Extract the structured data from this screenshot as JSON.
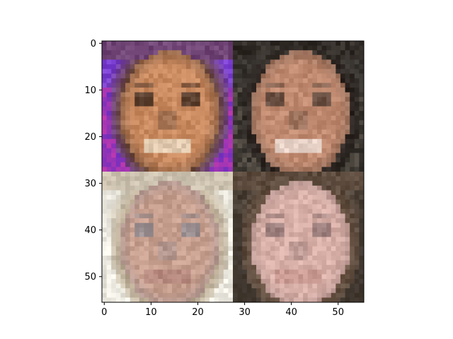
{
  "figure": {
    "axes": {
      "x_ticks": [
        "0",
        "10",
        "20",
        "30",
        "40",
        "50"
      ],
      "y_ticks": [
        "0",
        "10",
        "20",
        "30",
        "40",
        "50"
      ],
      "xlim": [
        -0.5,
        55.5
      ],
      "ylim": [
        55.5,
        -0.5
      ],
      "grid": false
    },
    "image": {
      "grid_size": 56,
      "panels": [
        {
          "name": "face-top-left",
          "background": "#7a3fd0",
          "accent": "#d41a7a",
          "skin": "#c98a60",
          "hair": "#6a4a3a",
          "shadow": "#3a2a22",
          "mouth": "#e8d8c0"
        },
        {
          "name": "face-top-right",
          "background": "#3a3732",
          "accent": "#5a5045",
          "skin": "#c08a70",
          "hair": "#2e2622",
          "shadow": "#4a3a30",
          "mouth": "#f0e0d8"
        },
        {
          "name": "face-bottom-left",
          "background": "#e8e6dc",
          "accent": "#f4f2ea",
          "skin": "#c8a090",
          "hair": "#b8a890",
          "shadow": "#8a8890",
          "mouth": "#b88a80"
        },
        {
          "name": "face-bottom-right",
          "background": "#4a4036",
          "accent": "#2a2420",
          "skin": "#d8b0a8",
          "hair": "#6a5444",
          "shadow": "#8a7070",
          "mouth": "#c89890"
        }
      ]
    }
  }
}
